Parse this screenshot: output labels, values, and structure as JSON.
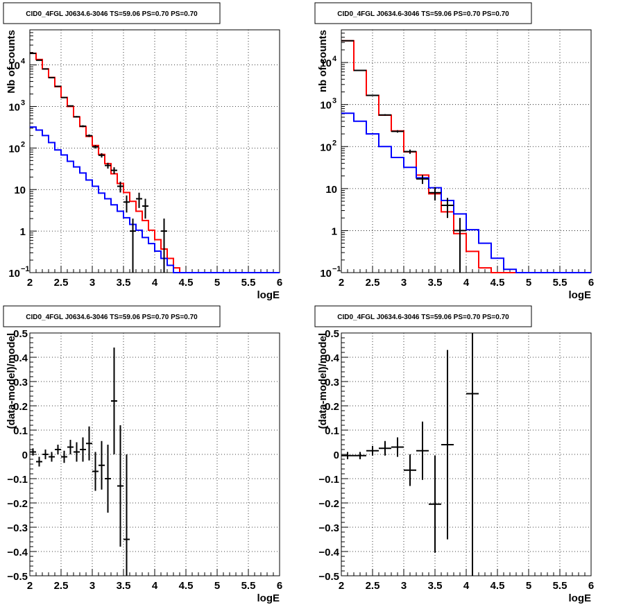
{
  "window_title": "CID0_4FGL J0634.6-3046 TS=59.06 PS=0.70 PS=0.70",
  "chart_data": [
    {
      "type": "line",
      "title": "CID0_4FGL J0634.6-3046 TS=59.06 PS=0.70 PS=0.70",
      "xlabel": "logE",
      "ylabel": "Nb of counts",
      "xlim": [
        2,
        6
      ],
      "ylim": [
        0.1,
        70000
      ],
      "yscale": "log",
      "grid": true,
      "xticks": [
        "2",
        "2.5",
        "3",
        "3.5",
        "4",
        "4.5",
        "5",
        "5.5",
        "6"
      ],
      "yticks": [
        {
          "value": 0.1,
          "label": "10",
          "sup": "−1"
        },
        {
          "value": 1,
          "label": "1",
          "sup": ""
        },
        {
          "value": 10,
          "label": "10",
          "sup": ""
        },
        {
          "value": 100,
          "label": "10",
          "sup": "2"
        },
        {
          "value": 1000,
          "label": "10",
          "sup": "3"
        },
        {
          "value": 10000,
          "label": "10",
          "sup": "4"
        }
      ],
      "bin_edges": [
        2.0,
        2.1,
        2.2,
        2.3,
        2.4,
        2.5,
        2.6,
        2.7,
        2.8,
        2.9,
        3.0,
        3.1,
        3.2,
        3.3,
        3.4,
        3.5,
        3.6,
        3.7,
        3.8,
        3.9,
        4.0,
        4.1,
        4.2,
        4.3,
        4.4,
        4.5,
        4.6,
        4.7,
        4.8,
        4.9,
        5.0,
        5.1,
        5.2,
        5.3,
        5.4,
        5.5,
        5.6,
        5.7,
        5.8,
        5.9,
        6.0
      ],
      "series": [
        {
          "color": "#ff0000",
          "style": "step",
          "values": [
            19000,
            13500,
            8000,
            5000,
            3000,
            1650,
            1000,
            560,
            330,
            190,
            115,
            70,
            42,
            24,
            14,
            8.5,
            5.2,
            3.0,
            1.8,
            1.05,
            0.62,
            0.37,
            0.22,
            0.13,
            0.1,
            0.1,
            0.1,
            0.1,
            0.1,
            0.1,
            0.1,
            0.1,
            0.1,
            0.1,
            0.1,
            0.1,
            0.1,
            0.1,
            0.1,
            0.1
          ]
        },
        {
          "color": "#0000ff",
          "style": "step",
          "values": [
            320,
            270,
            200,
            135,
            90,
            68,
            48,
            35,
            25,
            17,
            12,
            8.2,
            6.0,
            4.3,
            3.0,
            2.1,
            1.45,
            1.05,
            0.7,
            0.5,
            0.33,
            0.22,
            0.15,
            0.1,
            0.1,
            0.1,
            0.1,
            0.1,
            0.1,
            0.1,
            0.1,
            0.1,
            0.1,
            0.1,
            0.1,
            0.1,
            0.1,
            0.1,
            0.1,
            0.1
          ]
        }
      ],
      "points": [
        {
          "x": 2.05,
          "y": 19000,
          "err": 140
        },
        {
          "x": 2.15,
          "y": 13000,
          "err": 115
        },
        {
          "x": 2.25,
          "y": 8000,
          "err": 90
        },
        {
          "x": 2.35,
          "y": 4950,
          "err": 70
        },
        {
          "x": 2.45,
          "y": 3050,
          "err": 55
        },
        {
          "x": 2.55,
          "y": 1640,
          "err": 40
        },
        {
          "x": 2.65,
          "y": 1030,
          "err": 32
        },
        {
          "x": 2.75,
          "y": 565,
          "err": 24
        },
        {
          "x": 2.85,
          "y": 335,
          "err": 18
        },
        {
          "x": 2.95,
          "y": 198,
          "err": 14
        },
        {
          "x": 3.05,
          "y": 107,
          "err": 10
        },
        {
          "x": 3.15,
          "y": 67,
          "err": 8
        },
        {
          "x": 3.25,
          "y": 38,
          "err": 6
        },
        {
          "x": 3.35,
          "y": 29,
          "err": 5.4
        },
        {
          "x": 3.45,
          "y": 12,
          "err": 3.5
        },
        {
          "x": 3.55,
          "y": 5,
          "err": 2.2
        },
        {
          "x": 3.65,
          "y": 1,
          "err": 1
        },
        {
          "x": 3.75,
          "y": 6,
          "err": 2.4
        },
        {
          "x": 3.85,
          "y": 4,
          "err": 2
        },
        {
          "x": 4.15,
          "y": 1,
          "err": 1
        }
      ]
    },
    {
      "type": "line",
      "title": "CID0_4FGL J0634.6-3046 TS=59.06 PS=0.70 PS=0.70",
      "xlabel": "logE",
      "ylabel": "nb of counts",
      "xlim": [
        2,
        6
      ],
      "ylim": [
        0.1,
        60000
      ],
      "yscale": "log",
      "grid": true,
      "xticks": [
        "2",
        "2.5",
        "3",
        "3.5",
        "4",
        "4.5",
        "5",
        "5.5",
        "6"
      ],
      "yticks": [
        {
          "value": 0.1,
          "label": "10",
          "sup": "−1"
        },
        {
          "value": 1,
          "label": "1",
          "sup": ""
        },
        {
          "value": 10,
          "label": "10",
          "sup": ""
        },
        {
          "value": 100,
          "label": "10",
          "sup": "2"
        },
        {
          "value": 1000,
          "label": "10",
          "sup": "3"
        },
        {
          "value": 10000,
          "label": "10",
          "sup": "4"
        }
      ],
      "bin_edges": [
        2.0,
        2.2,
        2.4,
        2.6,
        2.8,
        3.0,
        3.2,
        3.4,
        3.6,
        3.8,
        4.0,
        4.2,
        4.4,
        4.6,
        4.8,
        5.0,
        5.2,
        5.4,
        5.6,
        5.8,
        6.0
      ],
      "series": [
        {
          "color": "#ff0000",
          "style": "step",
          "values": [
            33000,
            6500,
            1650,
            560,
            235,
            75,
            21,
            7.5,
            2.8,
            0.85,
            0.32,
            0.13,
            0.1,
            0.1,
            0.1,
            0.1,
            0.1,
            0.1,
            0.1,
            0.1
          ]
        },
        {
          "color": "#0000ff",
          "style": "step",
          "values": [
            620,
            400,
            200,
            100,
            55,
            32,
            18,
            10.5,
            5.2,
            2.5,
            1.05,
            0.5,
            0.22,
            0.12,
            0.1,
            0.1,
            0.1,
            0.1,
            0.1,
            0.1
          ]
        }
      ],
      "points": [
        {
          "x": 2.1,
          "y": 33000,
          "err": 180
        },
        {
          "x": 2.3,
          "y": 6500,
          "err": 80
        },
        {
          "x": 2.5,
          "y": 1650,
          "err": 40
        },
        {
          "x": 2.7,
          "y": 565,
          "err": 24
        },
        {
          "x": 2.9,
          "y": 230,
          "err": 15
        },
        {
          "x": 3.1,
          "y": 76,
          "err": 8.7
        },
        {
          "x": 3.3,
          "y": 17,
          "err": 4.1
        },
        {
          "x": 3.5,
          "y": 8,
          "err": 2.8
        },
        {
          "x": 3.7,
          "y": 4,
          "err": 2
        },
        {
          "x": 3.9,
          "y": 1,
          "err": 1
        }
      ]
    },
    {
      "type": "scatter",
      "title": "CID0_4FGL J0634.6-3046 TS=59.06 PS=0.70 PS=0.70",
      "xlabel": "logE",
      "ylabel": "(data-model)/model",
      "xlim": [
        2,
        6
      ],
      "ylim": [
        -0.5,
        0.5
      ],
      "grid": true,
      "xticks": [
        "2",
        "2.5",
        "3",
        "3.5",
        "4",
        "4.5",
        "5",
        "5.5",
        "6"
      ],
      "yticks": [
        "−0.5",
        "−0.4",
        "−0.3",
        "−0.2",
        "−0.1",
        "0",
        "0.1",
        "0.2",
        "0.3",
        "0.4",
        "0.5"
      ],
      "points": [
        {
          "x": 2.05,
          "y": 0.01,
          "err": 0.015,
          "xerr": 0.05
        },
        {
          "x": 2.15,
          "y": -0.03,
          "err": 0.02,
          "xerr": 0.05
        },
        {
          "x": 2.25,
          "y": 0.0,
          "err": 0.02,
          "xerr": 0.05
        },
        {
          "x": 2.35,
          "y": -0.01,
          "err": 0.02,
          "xerr": 0.05
        },
        {
          "x": 2.45,
          "y": 0.02,
          "err": 0.02,
          "xerr": 0.05
        },
        {
          "x": 2.55,
          "y": -0.01,
          "err": 0.025,
          "xerr": 0.05
        },
        {
          "x": 2.65,
          "y": 0.03,
          "err": 0.03,
          "xerr": 0.05
        },
        {
          "x": 2.75,
          "y": 0.01,
          "err": 0.04,
          "xerr": 0.05
        },
        {
          "x": 2.85,
          "y": 0.02,
          "err": 0.05,
          "xerr": 0.05
        },
        {
          "x": 2.95,
          "y": 0.045,
          "err": 0.07,
          "xerr": 0.05
        },
        {
          "x": 3.05,
          "y": -0.07,
          "err": 0.08,
          "xerr": 0.05
        },
        {
          "x": 3.15,
          "y": -0.045,
          "err": 0.1,
          "xerr": 0.05
        },
        {
          "x": 3.25,
          "y": -0.1,
          "err": 0.14,
          "xerr": 0.05
        },
        {
          "x": 3.35,
          "y": 0.22,
          "err": 0.22,
          "xerr": 0.05
        },
        {
          "x": 3.45,
          "y": -0.13,
          "err": 0.25,
          "xerr": 0.05
        },
        {
          "x": 3.55,
          "y": -0.35,
          "err": 0.35,
          "xerr": 0.05
        }
      ]
    },
    {
      "type": "scatter",
      "title": "CID0_4FGL J0634.6-3046 TS=59.06 PS=0.70 PS=0.70",
      "xlabel": "logE",
      "ylabel": "(data-model)/model",
      "xlim": [
        2,
        6
      ],
      "ylim": [
        -0.5,
        0.5
      ],
      "grid": true,
      "xticks": [
        "2",
        "2.5",
        "3",
        "3.5",
        "4",
        "4.5",
        "5",
        "5.5",
        "6"
      ],
      "yticks": [
        "−0.5",
        "−0.4",
        "−0.3",
        "−0.2",
        "−0.1",
        "0",
        "0.1",
        "0.2",
        "0.3",
        "0.4",
        "0.5"
      ],
      "points": [
        {
          "x": 2.1,
          "y": -0.005,
          "err": 0.015,
          "xerr": 0.1
        },
        {
          "x": 2.3,
          "y": -0.005,
          "err": 0.015,
          "xerr": 0.1
        },
        {
          "x": 2.5,
          "y": 0.015,
          "err": 0.02,
          "xerr": 0.1
        },
        {
          "x": 2.7,
          "y": 0.025,
          "err": 0.03,
          "xerr": 0.1
        },
        {
          "x": 2.9,
          "y": 0.03,
          "err": 0.04,
          "xerr": 0.1
        },
        {
          "x": 3.1,
          "y": -0.065,
          "err": 0.065,
          "xerr": 0.1
        },
        {
          "x": 3.3,
          "y": 0.015,
          "err": 0.12,
          "xerr": 0.1
        },
        {
          "x": 3.5,
          "y": -0.205,
          "err": 0.2,
          "xerr": 0.1
        },
        {
          "x": 3.7,
          "y": 0.04,
          "err": 0.39,
          "xerr": 0.1
        },
        {
          "x": 4.1,
          "y": 0.25,
          "err": 0.75,
          "xerr": 0.1
        }
      ]
    }
  ]
}
